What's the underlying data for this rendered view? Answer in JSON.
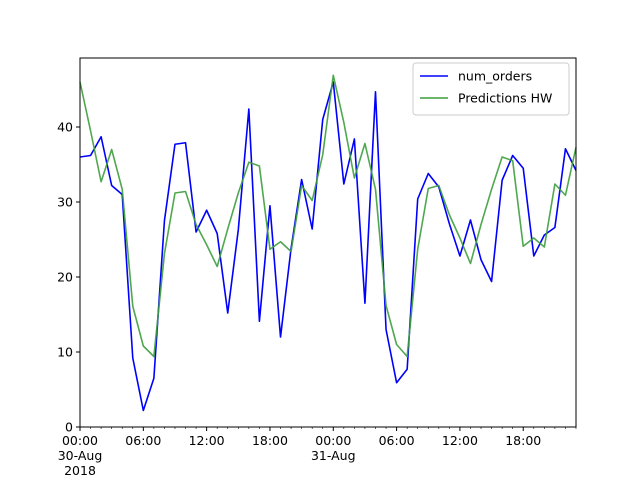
{
  "chart_data": {
    "type": "line",
    "xlabel": "",
    "ylabel": "",
    "x_range": [
      "2018-08-30 00:00",
      "2018-08-31 23:00"
    ],
    "ylim": [
      0,
      49.2
    ],
    "grid": false,
    "legend_position": "top-right",
    "x_tick_labels": [
      {
        "t": 0,
        "lines": [
          "00:00",
          "30-Aug",
          "2018"
        ]
      },
      {
        "t": 6,
        "lines": [
          "06:00"
        ]
      },
      {
        "t": 12,
        "lines": [
          "12:00"
        ]
      },
      {
        "t": 18,
        "lines": [
          "18:00"
        ]
      },
      {
        "t": 24,
        "lines": [
          "00:00",
          "31-Aug"
        ]
      },
      {
        "t": 30,
        "lines": [
          "06:00"
        ]
      },
      {
        "t": 36,
        "lines": [
          "12:00"
        ]
      },
      {
        "t": 42,
        "lines": [
          "18:00"
        ]
      }
    ],
    "y_ticks": [
      0,
      10,
      20,
      30,
      40
    ],
    "x": [
      "2018-08-30 00:00",
      "2018-08-30 01:00",
      "2018-08-30 02:00",
      "2018-08-30 03:00",
      "2018-08-30 04:00",
      "2018-08-30 05:00",
      "2018-08-30 06:00",
      "2018-08-30 07:00",
      "2018-08-30 08:00",
      "2018-08-30 09:00",
      "2018-08-30 10:00",
      "2018-08-30 11:00",
      "2018-08-30 12:00",
      "2018-08-30 13:00",
      "2018-08-30 14:00",
      "2018-08-30 15:00",
      "2018-08-30 16:00",
      "2018-08-30 17:00",
      "2018-08-30 18:00",
      "2018-08-30 19:00",
      "2018-08-30 20:00",
      "2018-08-30 21:00",
      "2018-08-30 22:00",
      "2018-08-30 23:00",
      "2018-08-31 00:00",
      "2018-08-31 01:00",
      "2018-08-31 02:00",
      "2018-08-31 03:00",
      "2018-08-31 04:00",
      "2018-08-31 05:00",
      "2018-08-31 06:00",
      "2018-08-31 07:00",
      "2018-08-31 08:00",
      "2018-08-31 09:00",
      "2018-08-31 10:00",
      "2018-08-31 11:00",
      "2018-08-31 12:00",
      "2018-08-31 13:00",
      "2018-08-31 14:00",
      "2018-08-31 15:00",
      "2018-08-31 16:00",
      "2018-08-31 17:00",
      "2018-08-31 18:00",
      "2018-08-31 19:00",
      "2018-08-31 20:00",
      "2018-08-31 21:00",
      "2018-08-31 22:00",
      "2018-08-31 23:00"
    ],
    "series": [
      {
        "name": "num_orders",
        "color": "#0000ff",
        "values": [
          36.0,
          36.2,
          38.7,
          32.2,
          31.0,
          9.2,
          2.2,
          6.5,
          27.5,
          37.7,
          37.9,
          26.0,
          28.9,
          25.8,
          15.2,
          26.3,
          42.4,
          14.1,
          29.5,
          12.0,
          23.8,
          33.0,
          26.4,
          41.0,
          46.0,
          32.4,
          38.4,
          16.5,
          44.7,
          13.0,
          5.9,
          7.7,
          30.4,
          33.8,
          32.0,
          27.1,
          22.8,
          27.6,
          22.3,
          19.4,
          32.9,
          36.2,
          34.5,
          22.8,
          25.6,
          26.6,
          37.1,
          34.2
        ]
      },
      {
        "name": "Predictions HW",
        "color": "#3c9e3c",
        "values": [
          46.0,
          39.5,
          32.7,
          37.0,
          31.7,
          16.1,
          10.8,
          9.4,
          23.1,
          31.2,
          31.4,
          27.0,
          24.3,
          21.4,
          26.4,
          31.2,
          35.3,
          34.8,
          23.7,
          24.7,
          23.4,
          32.2,
          30.2,
          36.3,
          46.9,
          40.6,
          33.2,
          37.8,
          31.7,
          16.2,
          11.0,
          9.4,
          23.7,
          31.8,
          32.2,
          28.3,
          25.2,
          21.8,
          27.0,
          31.7,
          36.0,
          35.5,
          24.1,
          25.2,
          24.0,
          32.4,
          30.9,
          37.3
        ]
      }
    ]
  }
}
